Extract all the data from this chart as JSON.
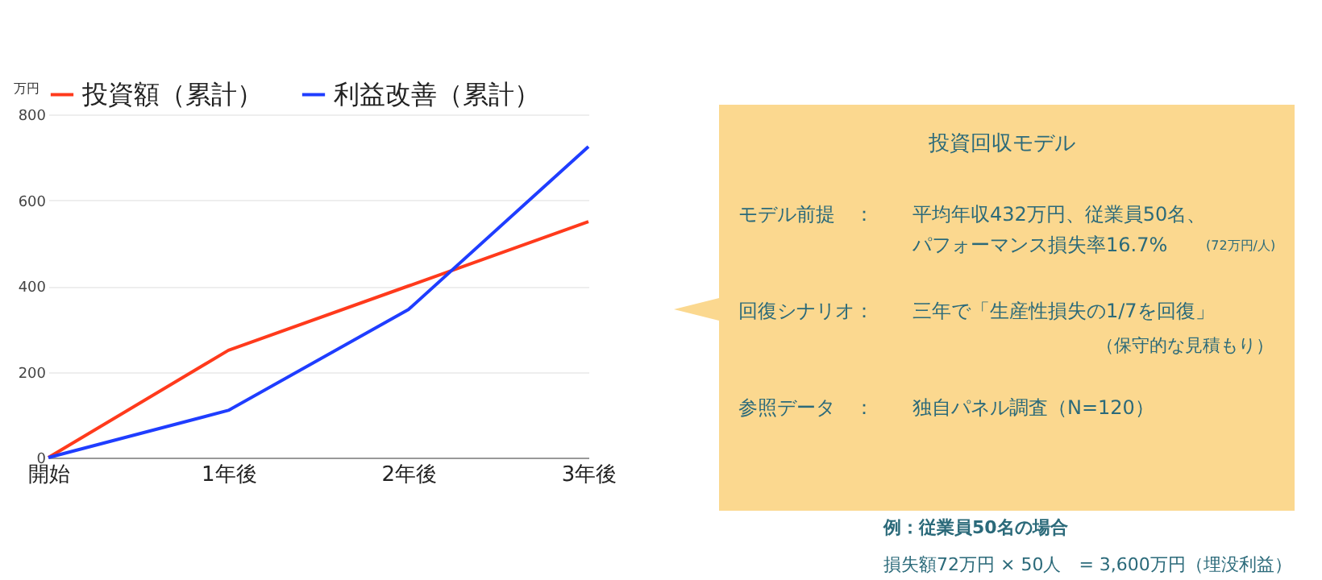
{
  "chart_data": [
    {
      "type": "line",
      "ylabel": "万円",
      "categories": [
        "開始",
        "1年後",
        "2年後",
        "3年後"
      ],
      "series": [
        {
          "name": "投資額（累計）",
          "color": "#ff3a1c",
          "values": [
            0,
            250,
            400,
            550
          ]
        },
        {
          "name": "利益改善（累計）",
          "color": "#1f3dff",
          "values": [
            0,
            110,
            345,
            725
          ]
        }
      ],
      "ylim": [
        0,
        800
      ],
      "yticks": [
        0,
        200,
        400,
        600,
        800
      ],
      "grid": "y",
      "legend": "top",
      "marker": "none",
      "line_style": "solid"
    },
    {
      "type": "other",
      "title": "投資回収モデル",
      "annotations": [
        "モデル前提　：",
        "平均年収432万円、従業員50名、",
        "パフォーマンス損失率16.7%",
        "(72万円/人)",
        "回復シナリオ：",
        "三年で「生産性損失の1/7を回復」",
        "（保守的な見積もり）",
        "参照データ　：",
        "独自パネル調査（N=120）",
        "例：従業員50名の場合",
        "損失額72万円 × 50人　= 3,600万円（埋没利益）"
      ]
    }
  ]
}
